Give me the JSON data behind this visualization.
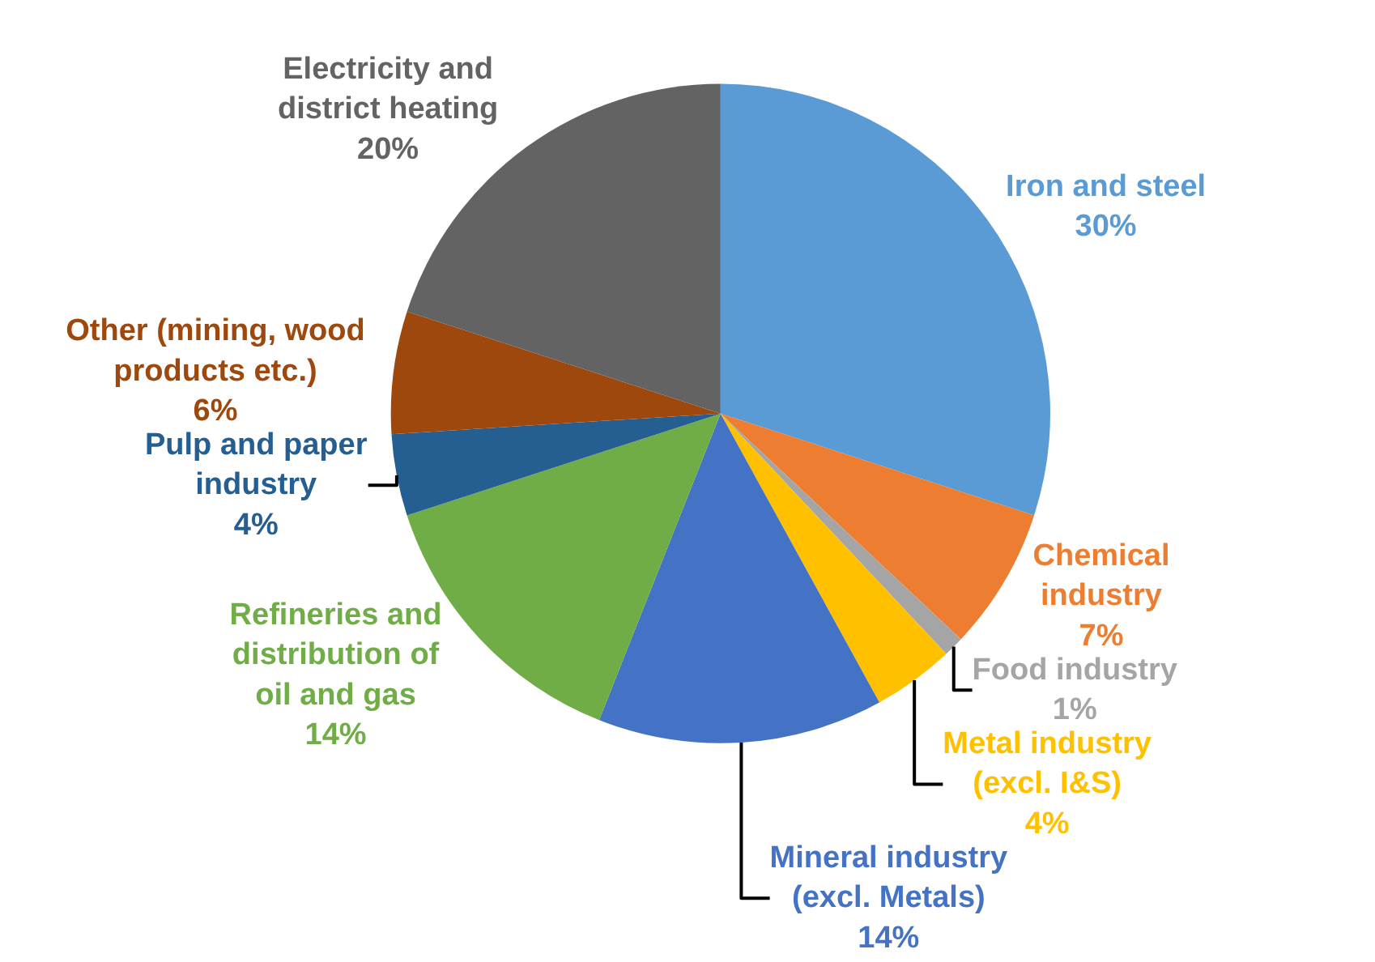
{
  "chart_data": {
    "type": "pie",
    "categories": [
      "Iron and steel",
      "Chemical\nindustry",
      "Food industry",
      "Metal industry\n(excl. I&S)",
      "Mineral industry\n(excl. Metals)",
      "Refineries and\ndistribution of\noil and gas",
      "Pulp and paper\nindustry",
      "Other (mining, wood\nproducts etc.)",
      "Electricity and\ndistrict heating"
    ],
    "values": [
      30,
      7,
      1,
      4,
      14,
      14,
      4,
      6,
      20
    ],
    "colors": [
      "#5b9bd5",
      "#ed7d31",
      "#a5a5a5",
      "#ffc000",
      "#4472c4",
      "#70ad47",
      "#255e91",
      "#9e480e",
      "#636363"
    ],
    "value_labels": [
      "30%",
      "7%",
      "1%",
      "4%",
      "14%",
      "14%",
      "4%",
      "6%",
      "20%"
    ],
    "legend": false
  }
}
